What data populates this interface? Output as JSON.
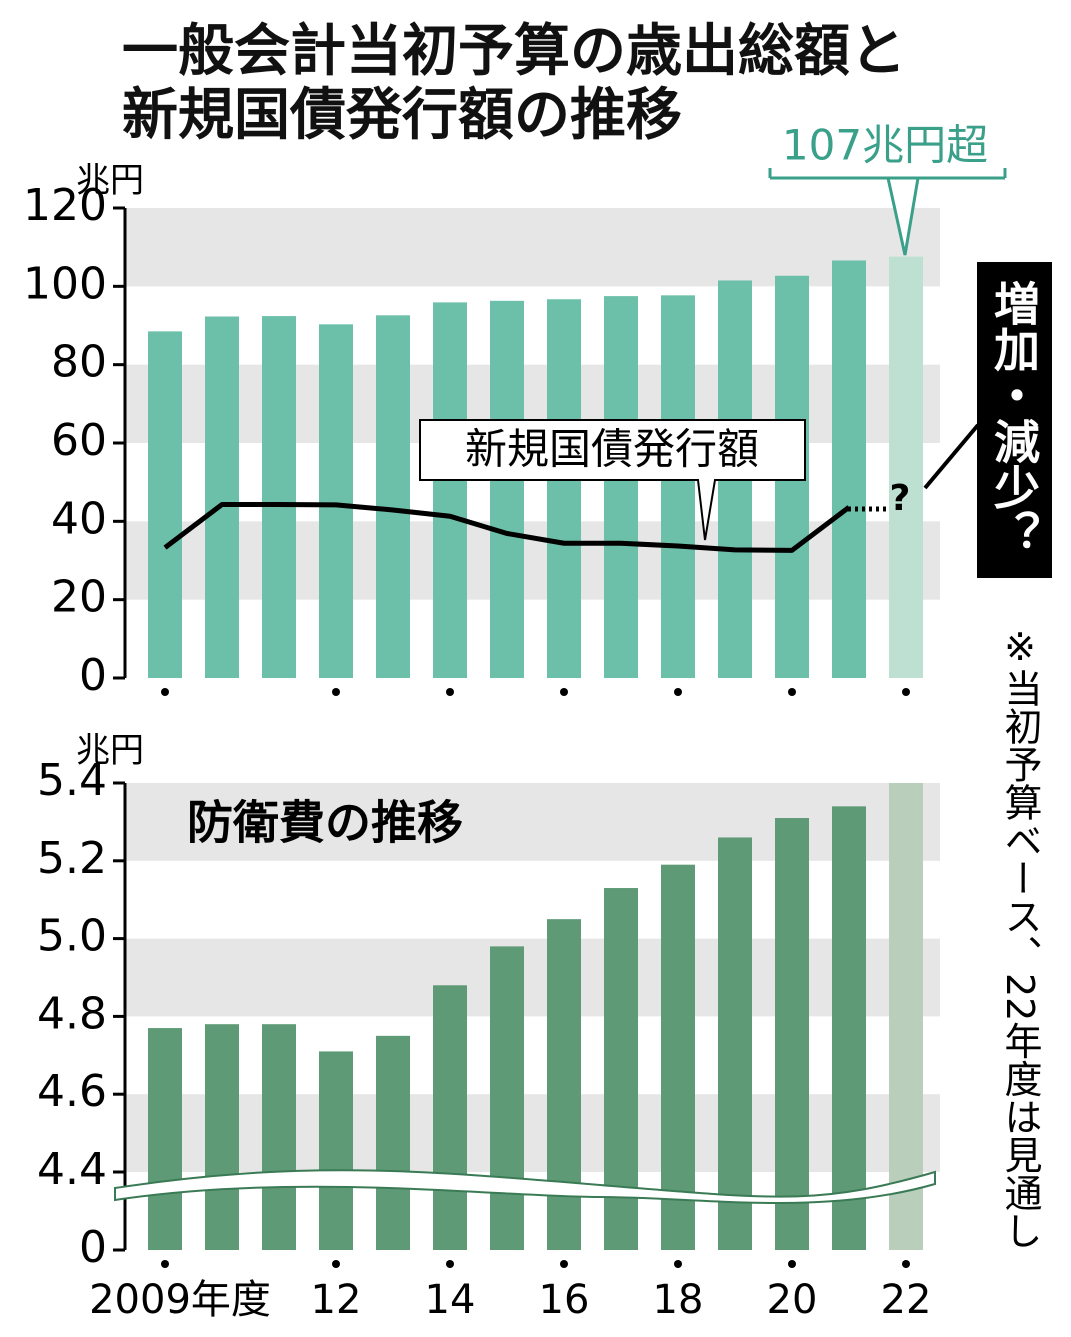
{
  "chart_data": [
    {
      "type": "bar",
      "title": "一般会計当初予算の歳出総額と新規国債発行額の推移",
      "y_unit": "兆円",
      "categories": [
        null,
        null,
        null,
        null,
        null,
        null,
        null,
        null,
        null,
        null,
        null,
        null,
        null,
        null
      ],
      "series": [
        {
          "type": "bar",
          "color": "#6cbfa8",
          "colors": [
            "#6cbfa8",
            "#6cbfa8",
            "#6cbfa8",
            "#6cbfa8",
            "#6cbfa8",
            "#6cbfa8",
            "#6cbfa8",
            "#6cbfa8",
            "#6cbfa8",
            "#6cbfa8",
            "#6cbfa8",
            "#6cbfa8",
            "#6cbfa8",
            "#bde0d3"
          ],
          "values": [
            88.5,
            92.3,
            92.4,
            90.3,
            92.6,
            95.9,
            96.3,
            96.7,
            97.5,
            97.7,
            101.5,
            102.7,
            106.6,
            107.6
          ]
        },
        {
          "type": "line",
          "name": "新規国債発行額",
          "color": "#000000",
          "values": [
            33.3,
            44.3,
            44.3,
            44.2,
            42.9,
            41.3,
            36.9,
            34.4,
            34.4,
            33.7,
            32.7,
            32.6,
            43.6,
            null
          ]
        }
      ],
      "annotations": [
        "107兆円超",
        "?",
        "増加・減少？"
      ],
      "ylim": [
        0,
        120
      ],
      "yticks": [
        0,
        20,
        40,
        60,
        80,
        100,
        120
      ],
      "grid": "bands"
    },
    {
      "type": "bar",
      "title": "防衛費の推移",
      "y_unit": "兆円",
      "categories": [
        "2009年度",
        null,
        null,
        "12",
        null,
        "14",
        null,
        "16",
        null,
        "18",
        null,
        "20",
        null,
        "22"
      ],
      "series": [
        {
          "type": "bar",
          "color": "#5f9a77",
          "colors": [
            "#5f9a77",
            "#5f9a77",
            "#5f9a77",
            "#5f9a77",
            "#5f9a77",
            "#5f9a77",
            "#5f9a77",
            "#5f9a77",
            "#5f9a77",
            "#5f9a77",
            "#5f9a77",
            "#5f9a77",
            "#5f9a77",
            "#b9cfbb"
          ],
          "values": [
            4.77,
            4.78,
            4.78,
            4.71,
            4.75,
            4.88,
            4.98,
            5.05,
            5.13,
            5.19,
            5.26,
            5.31,
            5.34,
            5.4
          ]
        }
      ],
      "ylim": [
        4.4,
        5.4
      ],
      "axis_break": true,
      "yticks": [
        0,
        4.4,
        4.6,
        4.8,
        {
          "value": 5,
          "label": "5.0"
        },
        5.2,
        5.4
      ],
      "grid": "bands"
    }
  ],
  "note": "※当初予算ベース、22年度は見通し"
}
